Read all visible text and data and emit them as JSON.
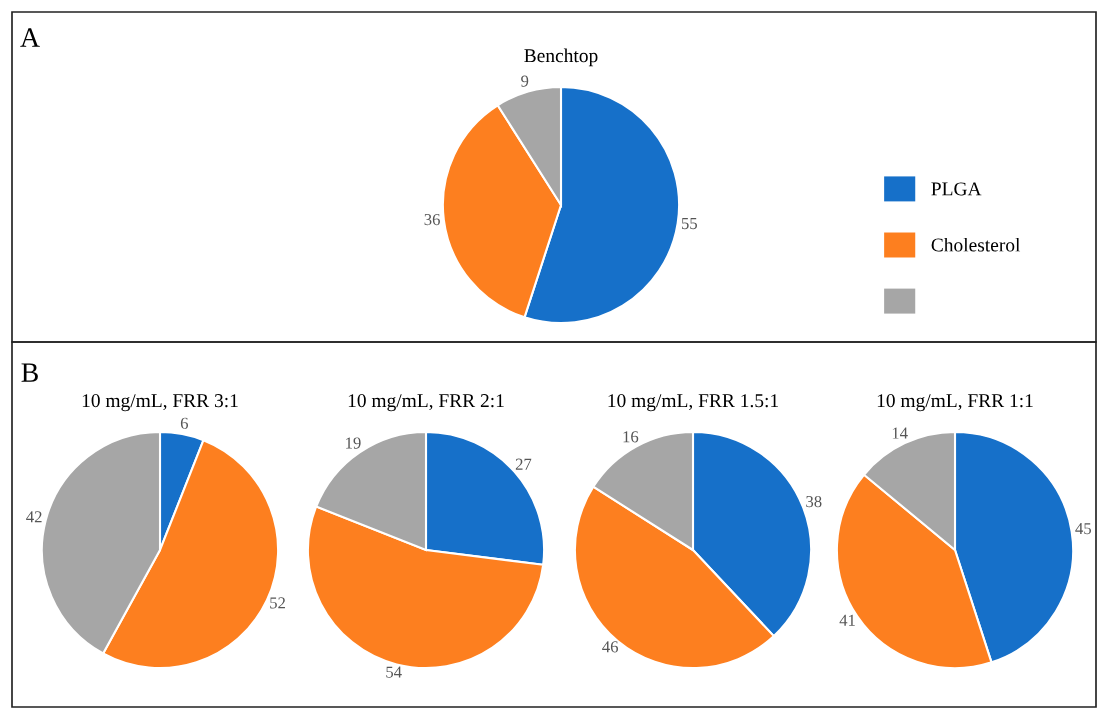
{
  "chart_data": [
    {
      "type": "pie",
      "title": "Benchtop",
      "categories": [
        "PLGA",
        "Cholesterol",
        null
      ],
      "values": [
        55,
        36,
        9
      ],
      "colors": [
        "#1670c9",
        "#fd7f1f",
        "#a6a6a6"
      ],
      "data_labels": true,
      "legend": "right",
      "annotations": [
        "A"
      ]
    },
    {
      "type": "pie",
      "title": "10 mg/mL, FRR 3:1",
      "categories": [
        null,
        null,
        null
      ],
      "values": [
        6,
        52,
        42
      ],
      "colors": [
        "#1670c9",
        "#fd7f1f",
        "#a6a6a6"
      ],
      "data_labels": true,
      "annotations": [
        "B"
      ]
    },
    {
      "type": "pie",
      "title": "10 mg/mL, FRR 2:1",
      "categories": [
        null,
        null,
        null
      ],
      "values": [
        27,
        54,
        19
      ],
      "colors": [
        "#1670c9",
        "#fd7f1f",
        "#a6a6a6"
      ],
      "data_labels": true
    },
    {
      "type": "pie",
      "title": "10 mg/mL, FRR 1.5:1",
      "categories": [
        null,
        null,
        null
      ],
      "values": [
        38,
        46,
        16
      ],
      "colors": [
        "#1670c9",
        "#fd7f1f",
        "#a6a6a6"
      ],
      "data_labels": true
    },
    {
      "type": "pie",
      "title": "10 mg/mL, FRR 1:1",
      "categories": [
        null,
        null,
        null
      ],
      "values": [
        45,
        41,
        14
      ],
      "colors": [
        "#1670c9",
        "#fd7f1f",
        "#a6a6a6"
      ],
      "data_labels": true
    }
  ]
}
